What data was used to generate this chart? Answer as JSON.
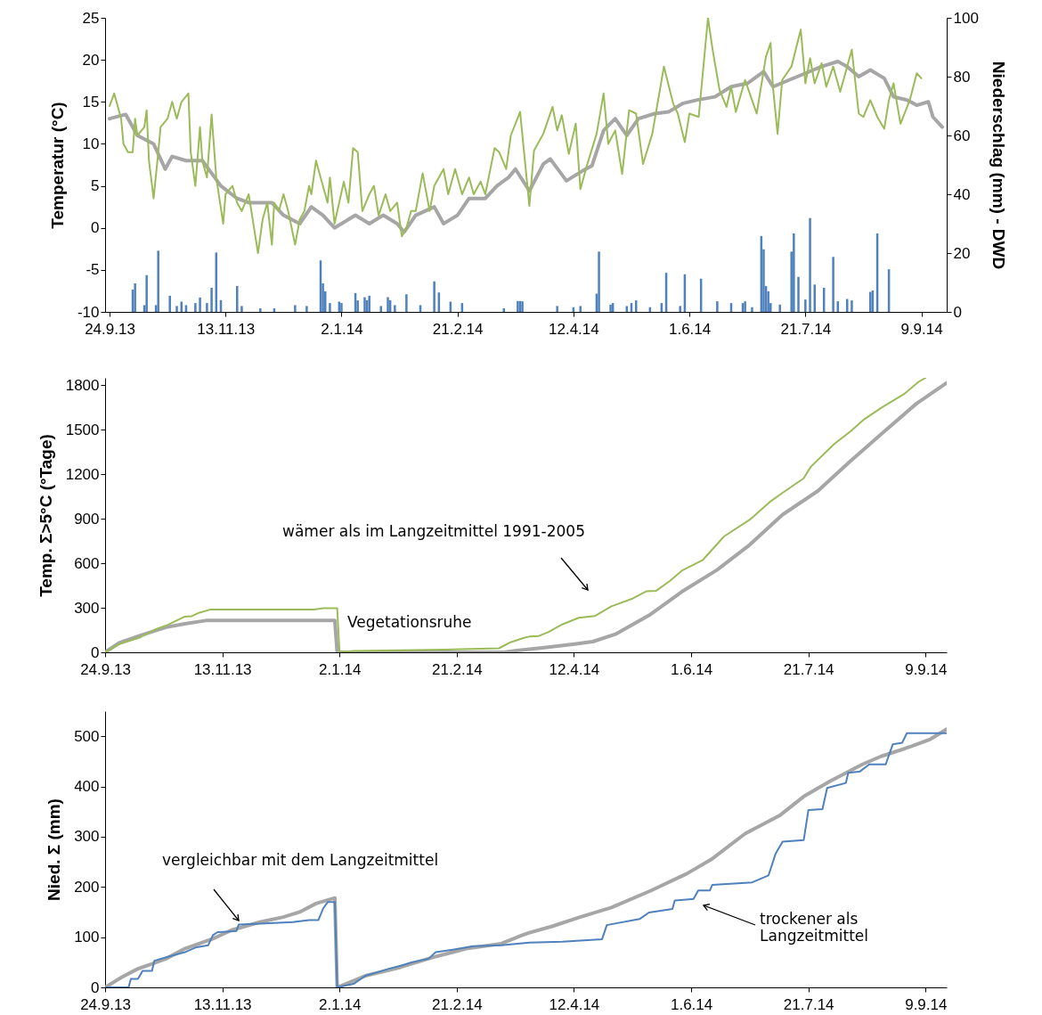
{
  "chart_data": [
    {
      "type": "line",
      "ylabel": "Temperatur (°C)",
      "y2label": "Niederschlag (mm) - DWD",
      "xlim": [
        "2013-09-24",
        "2014-09-18"
      ],
      "xticks": [
        {
          "value": "2013-09-24",
          "label": "24.9.13"
        },
        {
          "value": "2013-11-13",
          "label": "13.11.13"
        },
        {
          "value": "2014-01-02",
          "label": "2.1.14"
        },
        {
          "value": "2014-02-21",
          "label": "21.2.14"
        },
        {
          "value": "2014-04-12",
          "label": "12.4.14"
        },
        {
          "value": "2014-06-01",
          "label": "1.6.14"
        },
        {
          "value": "2014-07-21",
          "label": "21.7.14"
        },
        {
          "value": "2014-09-09",
          "label": "9.9.14"
        }
      ],
      "ylim": [
        -10,
        25
      ],
      "yticks": [
        -10,
        -5,
        0,
        5,
        10,
        15,
        20,
        25
      ],
      "y2lim": [
        0,
        100
      ],
      "y2ticks": [
        0,
        20,
        40,
        60,
        80,
        100
      ],
      "series": [
        {
          "color": "#a6a6a6",
          "x": [
            "2013-09-24",
            "2013-10-01",
            "2013-10-06",
            "2013-10-13",
            "2013-10-18",
            "2013-10-21",
            "2013-10-27",
            "2013-11-03",
            "2013-11-07",
            "2013-11-11",
            "2013-11-18",
            "2013-11-23",
            "2013-12-03",
            "2013-12-08",
            "2013-12-15",
            "2013-12-20",
            "2013-12-25",
            "2013-12-30",
            "2014-01-02",
            "2014-01-08",
            "2014-01-14",
            "2014-01-20",
            "2014-01-26",
            "2014-01-29",
            "2014-02-03",
            "2014-02-11",
            "2014-02-15",
            "2014-02-21",
            "2014-02-26",
            "2014-03-05",
            "2014-03-10",
            "2014-03-15",
            "2014-03-18",
            "2014-03-24",
            "2014-03-30",
            "2014-04-02",
            "2014-04-09",
            "2014-04-16",
            "2014-04-20",
            "2014-04-25",
            "2014-04-30",
            "2014-05-05",
            "2014-05-10",
            "2014-05-17",
            "2014-05-23",
            "2014-05-29",
            "2014-06-04",
            "2014-06-12",
            "2014-06-19",
            "2014-06-26",
            "2014-07-03",
            "2014-07-07",
            "2014-07-14",
            "2014-07-21",
            "2014-07-28",
            "2014-08-04",
            "2014-08-08",
            "2014-08-13",
            "2014-08-18",
            "2014-08-24",
            "2014-08-28",
            "2014-09-03",
            "2014-09-07",
            "2014-09-12",
            "2014-09-14",
            "2014-09-18"
          ],
          "values": [
            13,
            13.5,
            11,
            10,
            7,
            8.5,
            8,
            8,
            6.5,
            5,
            3.5,
            3,
            3,
            1.5,
            0.5,
            2.5,
            1.5,
            0,
            0.5,
            1.5,
            0.5,
            1.5,
            0.5,
            -0.5,
            1.5,
            2.5,
            0.5,
            1.5,
            3.5,
            3.5,
            5,
            6,
            7,
            4.4,
            7.6,
            8.2,
            5.6,
            6.8,
            7.4,
            11.6,
            13,
            11,
            13,
            13.6,
            13.8,
            14.8,
            15.2,
            15.6,
            16.8,
            17.2,
            18.6,
            16.8,
            17.6,
            18.4,
            19.2,
            19.8,
            19.2,
            18,
            18.8,
            17.8,
            15.6,
            15.2,
            14.6,
            15,
            13.2,
            12
          ]
        },
        {
          "color": "#9bbb59",
          "x": [
            "2013-09-24",
            "2013-09-26",
            "2013-09-29",
            "2013-09-30",
            "2013-10-02",
            "2013-10-04",
            "2013-10-05",
            "2013-10-06",
            "2013-10-09",
            "2013-10-10",
            "2013-10-11",
            "2013-10-13",
            "2013-10-15",
            "2013-10-16",
            "2013-10-19",
            "2013-10-21",
            "2013-10-23",
            "2013-10-25",
            "2013-10-28",
            "2013-10-29",
            "2013-10-31",
            "2013-11-02",
            "2013-11-03",
            "2013-11-05",
            "2013-11-07",
            "2013-11-09",
            "2013-11-12",
            "2013-11-13",
            "2013-11-16",
            "2013-11-18",
            "2013-11-20",
            "2013-11-23",
            "2013-11-27",
            "2013-11-29",
            "2013-12-01",
            "2013-12-03",
            "2013-12-04",
            "2013-12-06",
            "2013-12-08",
            "2013-12-10",
            "2013-12-13",
            "2013-12-15",
            "2013-12-17",
            "2013-12-19",
            "2013-12-20",
            "2013-12-22",
            "2013-12-24",
            "2013-12-27",
            "2013-12-28",
            "2013-12-30",
            "2014-01-01",
            "2014-01-03",
            "2014-01-05",
            "2014-01-07",
            "2014-01-09",
            "2014-01-11",
            "2014-01-14",
            "2014-01-16",
            "2014-01-18",
            "2014-01-21",
            "2014-01-23",
            "2014-01-26",
            "2014-01-28",
            "2014-01-30",
            "2014-02-01",
            "2014-02-03",
            "2014-02-06",
            "2014-02-09",
            "2014-02-11",
            "2014-02-15",
            "2014-02-17",
            "2014-02-20",
            "2014-02-23",
            "2014-02-26",
            "2014-02-28",
            "2014-03-03",
            "2014-03-05",
            "2014-03-09",
            "2014-03-11",
            "2014-03-14",
            "2014-03-16",
            "2014-03-20",
            "2014-03-24",
            "2014-03-26",
            "2014-03-30",
            "2014-04-03",
            "2014-04-05",
            "2014-04-07",
            "2014-04-10",
            "2014-04-13",
            "2014-04-15",
            "2014-04-18",
            "2014-04-22",
            "2014-04-25",
            "2014-04-27",
            "2014-04-30",
            "2014-05-03",
            "2014-05-06",
            "2014-05-09",
            "2014-05-12",
            "2014-05-16",
            "2014-05-21",
            "2014-05-25",
            "2014-05-27",
            "2014-05-30",
            "2014-06-01",
            "2014-06-05",
            "2014-06-09",
            "2014-06-11",
            "2014-06-14",
            "2014-06-17",
            "2014-06-19",
            "2014-06-21",
            "2014-06-25",
            "2014-06-28",
            "2014-06-30",
            "2014-07-04",
            "2014-07-06",
            "2014-07-07",
            "2014-07-09",
            "2014-07-11",
            "2014-07-15",
            "2014-07-19",
            "2014-07-21",
            "2014-07-23",
            "2014-07-25",
            "2014-07-28",
            "2014-07-30",
            "2014-08-02",
            "2014-08-05",
            "2014-08-08",
            "2014-08-10",
            "2014-08-13",
            "2014-08-15",
            "2014-08-18",
            "2014-08-21",
            "2014-08-24",
            "2014-08-26",
            "2014-08-28",
            "2014-08-31",
            "2014-09-04",
            "2014-09-07",
            "2014-09-09"
          ],
          "values": [
            14.5,
            16,
            13,
            10,
            9,
            9,
            13,
            11,
            12,
            14,
            8,
            3.5,
            9,
            12,
            13,
            15,
            13,
            15,
            16,
            9,
            5,
            12,
            8,
            6,
            13.5,
            6,
            0.5,
            4,
            5,
            3,
            2,
            4,
            -3,
            1,
            3,
            -2,
            3,
            2,
            4,
            2,
            -2,
            1,
            2,
            5,
            4,
            8,
            6,
            3,
            6,
            0.5,
            3,
            5.5,
            3,
            9.5,
            9,
            2,
            4,
            5,
            1.5,
            4,
            2,
            3,
            -1,
            0,
            2,
            2,
            6.5,
            2,
            5,
            7,
            4,
            7,
            4,
            6,
            4,
            5.5,
            4,
            9.5,
            9,
            7,
            11,
            13.8,
            2.6,
            9.2,
            11.2,
            14.4,
            11.6,
            13.4,
            8.8,
            12.4,
            4.6,
            7.6,
            11.2,
            16,
            10,
            11.6,
            6.4,
            14,
            13.6,
            7.6,
            11.2,
            19.2,
            14.8,
            13.6,
            10.2,
            13.6,
            13.2,
            25,
            21.2,
            16.4,
            14.4,
            16.8,
            13.8,
            17.6,
            15.2,
            13.6,
            20.4,
            22,
            16.8,
            11.2,
            17.6,
            19.2,
            23.6,
            17.2,
            20.2,
            17.2,
            19.6,
            16.8,
            19.2,
            16.2,
            19.2,
            21.2,
            13.6,
            13.2,
            15.2,
            13.2,
            11.8,
            15.2,
            17.2,
            12.4,
            15.2,
            18.4,
            17.8
          ]
        },
        {
          "type": "bar",
          "axis": "y2",
          "color": "#4f81bd",
          "x": [
            "2013-10-04",
            "2013-10-05",
            "2013-10-09",
            "2013-10-10",
            "2013-10-14",
            "2013-10-15",
            "2013-10-20",
            "2013-10-23",
            "2013-10-25",
            "2013-10-27",
            "2013-10-31",
            "2013-11-02",
            "2013-11-05",
            "2013-11-07",
            "2013-11-09",
            "2013-11-11",
            "2013-11-18",
            "2013-11-20",
            "2013-11-28",
            "2013-12-04",
            "2013-12-13",
            "2013-12-18",
            "2013-12-24",
            "2013-12-25",
            "2013-12-26",
            "2013-12-28",
            "2014-01-01",
            "2014-01-02",
            "2014-01-08",
            "2014-01-09",
            "2014-01-12",
            "2014-01-13",
            "2014-01-14",
            "2014-01-19",
            "2014-01-22",
            "2014-01-23",
            "2014-01-25",
            "2014-01-30",
            "2014-02-05",
            "2014-02-11",
            "2014-02-13",
            "2014-02-18",
            "2014-02-23",
            "2014-03-13",
            "2014-03-19",
            "2014-03-20",
            "2014-03-21",
            "2014-04-05",
            "2014-04-12",
            "2014-04-15",
            "2014-04-22",
            "2014-04-23",
            "2014-04-28",
            "2014-04-29",
            "2014-05-05",
            "2014-05-07",
            "2014-05-09",
            "2014-05-15",
            "2014-05-20",
            "2014-05-22",
            "2014-05-28",
            "2014-05-30",
            "2014-06-06",
            "2014-06-13",
            "2014-06-19",
            "2014-06-24",
            "2014-06-25",
            "2014-06-28",
            "2014-07-02",
            "2014-07-03",
            "2014-07-04",
            "2014-07-05",
            "2014-07-06",
            "2014-07-10",
            "2014-07-15",
            "2014-07-16",
            "2014-07-18",
            "2014-07-21",
            "2014-07-23",
            "2014-07-25",
            "2014-07-29",
            "2014-08-02",
            "2014-08-04",
            "2014-08-08",
            "2014-08-10",
            "2014-08-18",
            "2014-08-19",
            "2014-08-21",
            "2014-08-26"
          ],
          "values": [
            7.6,
            9.7,
            2.3,
            12.5,
            2.3,
            20.8,
            5.5,
            2,
            3.5,
            2.3,
            3,
            4.9,
            3,
            8.2,
            20.2,
            4,
            8.8,
            2,
            1.2,
            1.2,
            2.3,
            2,
            17.5,
            9.7,
            7,
            3,
            3.5,
            3,
            6.4,
            3.9,
            5,
            4,
            5.5,
            2,
            5,
            4,
            2.3,
            6,
            2.3,
            10.4,
            6.6,
            3.5,
            3,
            1.2,
            3.7,
            3.7,
            3.6,
            2,
            1.6,
            2,
            6.2,
            20.5,
            2.5,
            3,
            2,
            3,
            3.9,
            1.6,
            3,
            13.3,
            2,
            12.8,
            11.3,
            3.6,
            3,
            3,
            3.6,
            1.6,
            25.8,
            21.3,
            8.8,
            7,
            3,
            2.5,
            20.5,
            26.7,
            11.9,
            4.2,
            31.9,
            9.3,
            8.2,
            18.7,
            3.6,
            4.4,
            3.9,
            6.8,
            7.3,
            26.7,
            14.5
          ]
        }
      ]
    },
    {
      "type": "line",
      "ylabel": "Temp. Σ>5°C (°Tage)",
      "xlim": [
        "2013-09-24",
        "2014-09-18"
      ],
      "xticks": [
        {
          "value": "2013-09-24",
          "label": "24.9.13"
        },
        {
          "value": "2013-11-13",
          "label": "13.11.13"
        },
        {
          "value": "2014-01-02",
          "label": "2.1.14"
        },
        {
          "value": "2014-02-21",
          "label": "21.2.14"
        },
        {
          "value": "2014-04-12",
          "label": "12.4.14"
        },
        {
          "value": "2014-06-01",
          "label": "1.6.14"
        },
        {
          "value": "2014-07-21",
          "label": "21.7.14"
        },
        {
          "value": "2014-09-09",
          "label": "9.9.14"
        }
      ],
      "ylim": [
        0,
        1850
      ],
      "yticks": [
        0,
        300,
        600,
        900,
        1200,
        1500,
        1800
      ],
      "series": [
        {
          "color": "#a6a6a6",
          "x": [
            "2013-09-24",
            "2013-09-30",
            "2013-10-09",
            "2013-10-20",
            "2013-10-28",
            "2013-11-06",
            "2013-12-31",
            "2014-01-01",
            "2014-03-13",
            "2014-03-18",
            "2014-04-01",
            "2014-04-13",
            "2014-04-20",
            "2014-04-30",
            "2014-05-14",
            "2014-05-28",
            "2014-06-12",
            "2014-06-26",
            "2014-07-10",
            "2014-07-25",
            "2014-08-08",
            "2014-08-22",
            "2014-09-05",
            "2014-09-18"
          ],
          "values": [
            0,
            63,
            113,
            169,
            192,
            214,
            214,
            0,
            0,
            11,
            34,
            57,
            72,
            124,
            249,
            408,
            555,
            725,
            928,
            1087,
            1290,
            1483,
            1675,
            1816
          ]
        },
        {
          "color": "#9bbb59",
          "x": [
            "2013-09-24",
            "2013-09-30",
            "2013-10-09",
            "2013-10-16",
            "2013-10-20",
            "2013-10-28",
            "2013-10-31",
            "2013-11-03",
            "2013-11-08",
            "2013-12-22",
            "2013-12-26",
            "2014-01-01",
            "2014-01-02",
            "2014-01-08",
            "2014-02-16",
            "2014-03-11",
            "2014-03-16",
            "2014-03-22",
            "2014-03-24",
            "2014-03-28",
            "2014-04-01",
            "2014-04-07",
            "2014-04-14",
            "2014-04-21",
            "2014-04-28",
            "2014-05-07",
            "2014-05-13",
            "2014-05-17",
            "2014-05-23",
            "2014-05-28",
            "2014-06-06",
            "2014-06-15",
            "2014-06-26",
            "2014-07-05",
            "2014-07-10",
            "2014-07-19",
            "2014-07-22",
            "2014-08-01",
            "2014-08-08",
            "2014-08-14",
            "2014-08-22",
            "2014-08-31",
            "2014-09-06",
            "2014-09-09"
          ],
          "values": [
            0,
            56,
            101,
            158,
            180,
            241,
            244,
            266,
            289,
            289,
            298,
            298,
            0,
            9,
            18,
            27,
            68,
            99,
            106,
            110,
            136,
            188,
            233,
            245,
            310,
            362,
            412,
            414,
            482,
            550,
            623,
            781,
            894,
            1019,
            1075,
            1173,
            1250,
            1404,
            1490,
            1573,
            1657,
            1743,
            1823,
            1850
          ]
        }
      ],
      "annotations": [
        "wämer als im Langzeitmittel 1991-2005",
        "Vegetationsruhe"
      ]
    },
    {
      "type": "line",
      "ylabel": "Nied. Σ (mm)",
      "xlim": [
        "2013-09-24",
        "2014-09-18"
      ],
      "xticks": [
        {
          "value": "2013-09-24",
          "label": "24.9.13"
        },
        {
          "value": "2013-11-13",
          "label": "13.11.13"
        },
        {
          "value": "2014-01-02",
          "label": "2.1.14"
        },
        {
          "value": "2014-02-21",
          "label": "21.2.14"
        },
        {
          "value": "2014-04-12",
          "label": "12.4.14"
        },
        {
          "value": "2014-06-01",
          "label": "1.6.14"
        },
        {
          "value": "2014-07-21",
          "label": "21.7.14"
        },
        {
          "value": "2014-09-09",
          "label": "9.9.14"
        }
      ],
      "ylim": [
        0,
        550
      ],
      "yticks": [
        0,
        100,
        200,
        300,
        400,
        500
      ],
      "series": [
        {
          "color": "#a6a6a6",
          "x": [
            "2013-09-24",
            "2013-10-01",
            "2013-10-08",
            "2013-10-14",
            "2013-10-20",
            "2013-10-28",
            "2013-11-09",
            "2013-11-17",
            "2013-11-29",
            "2013-12-09",
            "2013-12-16",
            "2013-12-23",
            "2013-12-31",
            "2014-01-01",
            "2014-01-13",
            "2014-01-28",
            "2014-02-11",
            "2014-02-25",
            "2014-03-12",
            "2014-03-21",
            "2014-03-24",
            "2014-04-03",
            "2014-04-14",
            "2014-04-28",
            "2014-05-15",
            "2014-05-30",
            "2014-06-10",
            "2014-06-24",
            "2014-07-09",
            "2014-07-19",
            "2014-07-30",
            "2014-08-13",
            "2014-08-21",
            "2014-09-03",
            "2014-09-11",
            "2014-09-18"
          ],
          "values": [
            0,
            20,
            37,
            47,
            57,
            77,
            97,
            114,
            130,
            140,
            150,
            167,
            178,
            0,
            23,
            40,
            60,
            77,
            87,
            104,
            109,
            122,
            139,
            159,
            193,
            226,
            256,
            306,
            343,
            380,
            410,
            444,
            460,
            480,
            494,
            514
          ]
        },
        {
          "color": "#4f81bd",
          "x": [
            "2013-09-24",
            "2013-10-04",
            "2013-10-05",
            "2013-10-08",
            "2013-10-10",
            "2013-10-14",
            "2013-10-15",
            "2013-10-20",
            "2013-10-28",
            "2013-11-02",
            "2013-11-07",
            "2013-11-09",
            "2013-11-11",
            "2013-11-19",
            "2013-11-20",
            "2013-11-29",
            "2013-12-13",
            "2013-12-20",
            "2013-12-24",
            "2013-12-26",
            "2013-12-28",
            "2013-12-31",
            "2014-01-01",
            "2014-01-08",
            "2014-01-13",
            "2014-01-18",
            "2014-01-23",
            "2014-01-28",
            "2014-02-02",
            "2014-02-09",
            "2014-02-12",
            "2014-02-18",
            "2014-02-22",
            "2014-02-28",
            "2014-03-12",
            "2014-03-24",
            "2014-04-07",
            "2014-04-24",
            "2014-04-26",
            "2014-05-10",
            "2014-05-14",
            "2014-05-24",
            "2014-05-25",
            "2014-06-02",
            "2014-06-04",
            "2014-06-09",
            "2014-06-10",
            "2014-06-27",
            "2014-07-04",
            "2014-07-07",
            "2014-07-10",
            "2014-07-19",
            "2014-07-21",
            "2014-07-27",
            "2014-07-29",
            "2014-08-06",
            "2014-08-07",
            "2014-08-12",
            "2014-08-16",
            "2014-08-23",
            "2014-08-26",
            "2014-08-30",
            "2014-09-01",
            "2014-09-18"
          ],
          "values": [
            0,
            0,
            17,
            17,
            33,
            33,
            53,
            60,
            70,
            80,
            84,
            104,
            110,
            112,
            125,
            127,
            130,
            134,
            134,
            157,
            170,
            170,
            0,
            7,
            23,
            30,
            37,
            43,
            50,
            57,
            70,
            74,
            77,
            82,
            84,
            89,
            91,
            96,
            124,
            136,
            149,
            156,
            173,
            176,
            193,
            193,
            204,
            209,
            223,
            266,
            290,
            293,
            353,
            355,
            397,
            407,
            427,
            430,
            444,
            444,
            484,
            487,
            506,
            506
          ]
        }
      ],
      "annotations": [
        "vergleichbar mit dem Langzeitmittel",
        "trockener als\nLangzeitmittel"
      ]
    }
  ]
}
